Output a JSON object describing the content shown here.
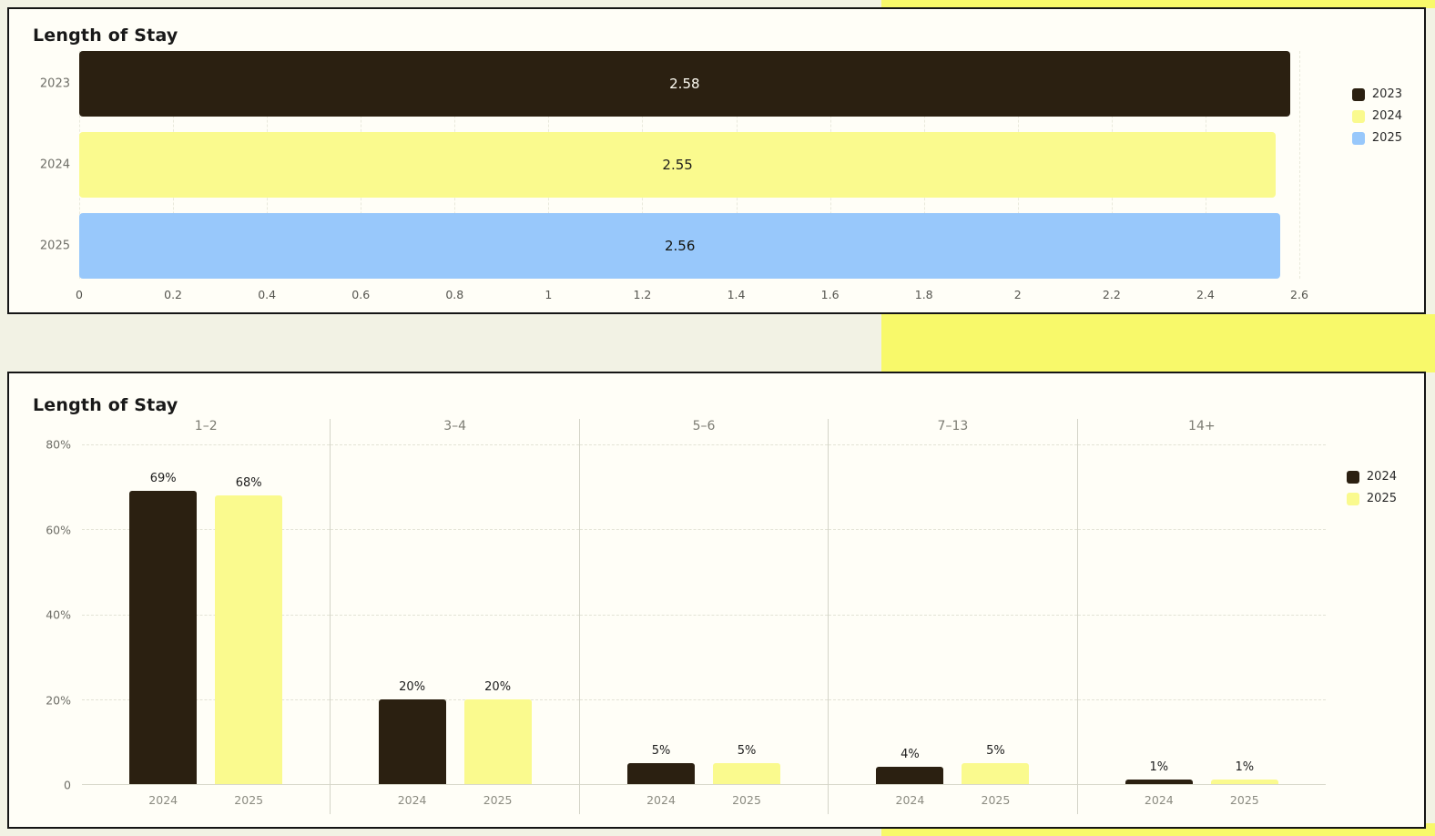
{
  "page": {
    "background": "#f2f2e4",
    "accent_color": "#f8f96a",
    "card_background": "#fffef7",
    "card_border": "#151515"
  },
  "chart_data": [
    {
      "type": "bar",
      "orientation": "horizontal",
      "title": "Length of Stay",
      "categories": [
        "2023",
        "2024",
        "2025"
      ],
      "values": [
        2.58,
        2.55,
        2.56
      ],
      "value_labels": [
        "2.58",
        "2.55",
        "2.56"
      ],
      "series_colors": [
        "#2b2011",
        "#fafa8e",
        "#98c8fb"
      ],
      "value_label_colors": [
        "#fffdf4",
        "#1c1c1c",
        "#14140e"
      ],
      "xlim": [
        0,
        2.6
      ],
      "x_ticks": [
        "0",
        "0.2",
        "0.4",
        "0.6",
        "0.8",
        "1",
        "1.2",
        "1.4",
        "1.6",
        "1.8",
        "2",
        "2.2",
        "2.4",
        "2.6"
      ],
      "grid": "vertical-dashed",
      "legend_position": "right",
      "legend": [
        {
          "label": "2023",
          "color": "#2b2011"
        },
        {
          "label": "2024",
          "color": "#fafa8e"
        },
        {
          "label": "2025",
          "color": "#98c8fb"
        }
      ]
    },
    {
      "type": "bar",
      "orientation": "vertical",
      "faceted": true,
      "title": "Length of Stay",
      "groups": [
        "1–2",
        "3–4",
        "5–6",
        "7–13",
        "14+"
      ],
      "series": [
        {
          "name": "2024",
          "color": "#2b2011",
          "values": [
            69,
            20,
            5,
            4,
            1
          ]
        },
        {
          "name": "2025",
          "color": "#fafa8e",
          "values": [
            68,
            20,
            5,
            5,
            1
          ]
        }
      ],
      "value_suffix": "%",
      "ylim": [
        0,
        80
      ],
      "y_ticks": [
        "80%",
        "60%",
        "40%",
        "20%",
        "0"
      ],
      "x_tick_labels": [
        "2024",
        "2025"
      ],
      "grid": "horizontal-dashed",
      "legend_position": "right",
      "legend": [
        {
          "label": "2024",
          "color": "#2b2011"
        },
        {
          "label": "2025",
          "color": "#fafa8e"
        }
      ]
    }
  ]
}
